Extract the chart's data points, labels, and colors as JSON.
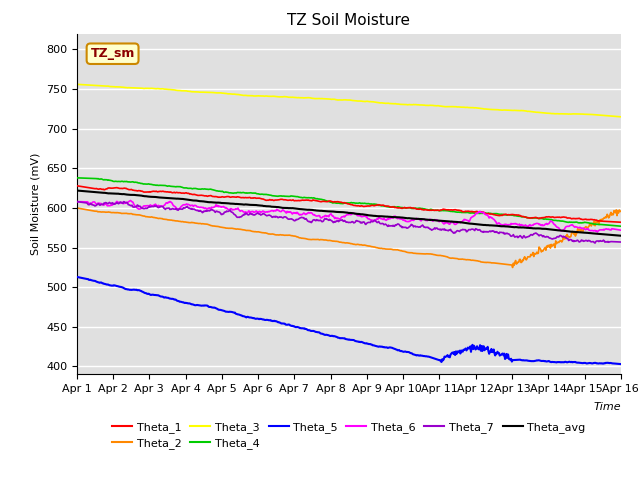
{
  "title": "TZ Soil Moisture",
  "xlabel": "Time",
  "ylabel": "Soil Moisture (mV)",
  "ylim": [
    390,
    820
  ],
  "xlim": [
    0,
    15
  ],
  "x_tick_labels": [
    "Apr 1",
    "Apr 2",
    "Apr 3",
    "Apr 4",
    "Apr 5",
    "Apr 6",
    "Apr 7",
    "Apr 8",
    "Apr 9",
    "Apr 10",
    "Apr 11",
    "Apr 12",
    "Apr 13",
    "Apr 14",
    "Apr 15",
    "Apr 16"
  ],
  "legend_label": "TZ_sm",
  "series_colors": {
    "Theta_1": "#ff0000",
    "Theta_2": "#ff8800",
    "Theta_3": "#ffff00",
    "Theta_4": "#00cc00",
    "Theta_5": "#0000ff",
    "Theta_6": "#ff00ff",
    "Theta_7": "#9900cc",
    "Theta_avg": "#000000"
  },
  "background_color": "#e0e0e0",
  "title_fontsize": 11,
  "axis_fontsize": 8,
  "tick_fontsize": 8
}
